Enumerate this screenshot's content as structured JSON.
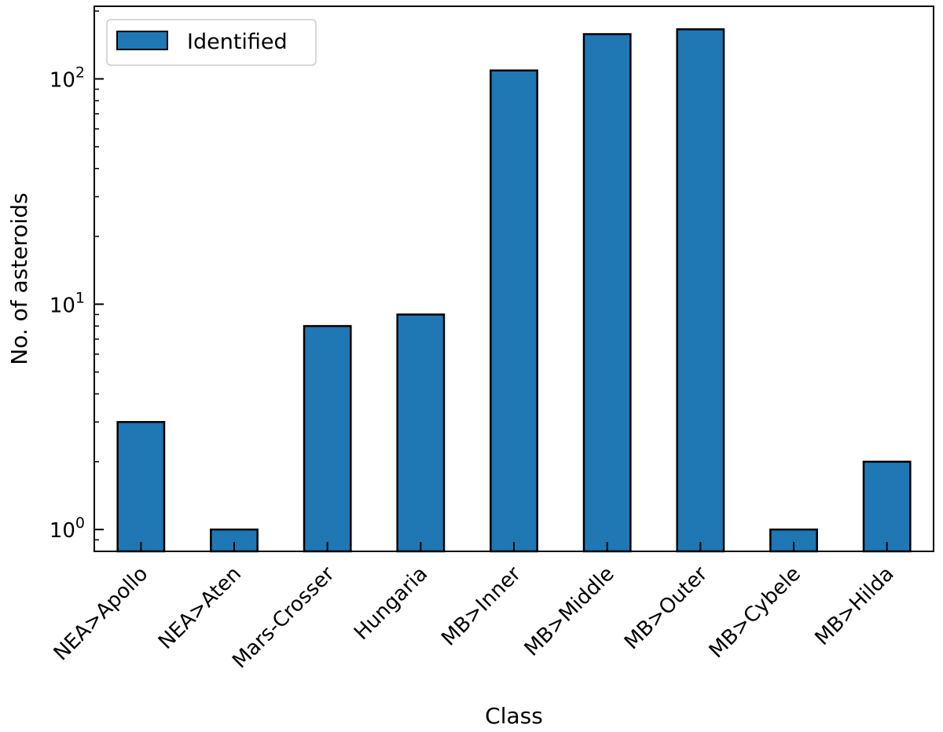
{
  "chart_data": {
    "type": "bar",
    "title": "",
    "xlabel": "Class",
    "ylabel": "No. of asteroids",
    "yscale": "log",
    "ylim": [
      0.8,
      210
    ],
    "y_ticks": [
      {
        "value": 1,
        "base": "10",
        "exponent": "0"
      },
      {
        "value": 10,
        "base": "10",
        "exponent": "1"
      },
      {
        "value": 100,
        "base": "10",
        "exponent": "2"
      }
    ],
    "categories": [
      "NEA>Apollo",
      "NEA>Aten",
      "Mars-Crosser",
      "Hungaria",
      "MB>Inner",
      "MB>Middle",
      "MB>Outer",
      "MB>Cybele",
      "MB>Hilda"
    ],
    "series": [
      {
        "name": "Identified",
        "color": "#1f77b4",
        "values": [
          3,
          1,
          8,
          9,
          109,
          158,
          166,
          1,
          2
        ]
      }
    ],
    "legend": {
      "position": "top-left"
    },
    "grid": false
  }
}
